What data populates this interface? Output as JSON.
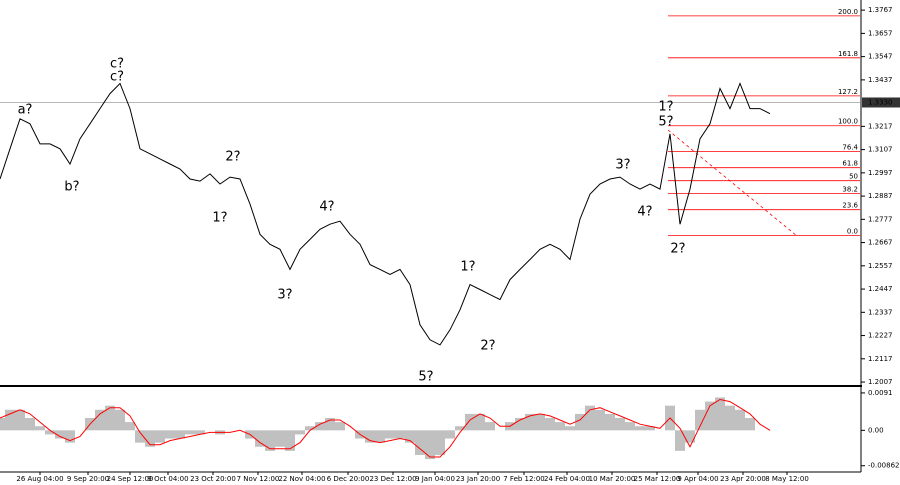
{
  "chart_data": [
    {
      "type": "line",
      "series": [
        {
          "color": "#000000",
          "values": [
            1.2968,
            1.3111,
            1.3253,
            1.3229,
            1.3134,
            1.3134,
            1.3111,
            1.3039,
            1.3158,
            1.3229,
            1.3301,
            1.3372,
            1.342,
            1.3301,
            1.3111,
            1.3087,
            1.3063,
            1.3039,
            1.3015,
            1.2968,
            1.2958,
            1.2992,
            1.2944,
            1.2977,
            1.2968,
            1.2849,
            1.2706,
            1.2659,
            1.2635,
            1.254,
            1.2635,
            1.2682,
            1.273,
            1.2754,
            1.2768,
            1.2706,
            1.2659,
            1.2563,
            1.254,
            1.2516,
            1.254,
            1.2468,
            1.2278,
            1.2207,
            1.2183,
            1.2254,
            1.2349,
            1.2468,
            1.2445,
            1.2421,
            1.2397,
            1.2492,
            1.254,
            1.2587,
            1.2635,
            1.2659,
            1.2635,
            1.2587,
            1.2778,
            1.2896,
            1.2944,
            1.2968,
            1.2977,
            1.2944,
            1.292,
            1.2944,
            1.292,
            1.3182,
            1.2754,
            1.292,
            1.3158,
            1.3229,
            1.3396,
            1.3301,
            1.342,
            1.3301,
            1.3301,
            1.3277
          ]
        }
      ],
      "ylim": [
        1.1993,
        1.3815
      ],
      "yticks": [
        1.3767,
        1.3657,
        1.3547,
        1.3437,
        1.3217,
        1.3107,
        1.2997,
        1.2887,
        1.2777,
        1.2667,
        1.2557,
        1.2447,
        1.2337,
        1.2227,
        1.2117,
        1.2007
      ],
      "current_price": {
        "value": 1.333,
        "label": "1.3330"
      },
      "fib": {
        "low": 1.27,
        "high": 1.322,
        "color": "#ff0000",
        "levels": [
          {
            "value": 0,
            "label": "0.0"
          },
          23.6,
          38.2,
          50,
          {
            "value": 61.8,
            "label": "61.8"
          },
          76.4,
          {
            "value": 100,
            "label": "100.0"
          },
          127.2,
          161.8,
          {
            "value": 200,
            "label": "200.0"
          }
        ]
      },
      "wave_labels": [
        {
          "text": "a?",
          "color": "#ff0000"
        },
        {
          "text": "b?",
          "color": "#ff0000"
        },
        {
          "text": "c?",
          "color": "#0000ff"
        },
        {
          "text": "c?",
          "color": "#ff0000"
        },
        {
          "text": "2?",
          "color": "#ff0000"
        },
        {
          "text": "1?",
          "color": "#ff0000"
        },
        {
          "text": "3?",
          "color": "#ff0000"
        },
        {
          "text": "4?",
          "color": "#ff0000"
        },
        {
          "text": "5?",
          "color": "#ff0000"
        },
        {
          "text": "1?",
          "color": "#ff0000"
        },
        {
          "text": "2?",
          "color": "#ff0000"
        },
        {
          "text": "3?",
          "color": "#ff0000"
        },
        {
          "text": "4?",
          "color": "#ff0000"
        },
        {
          "text": "1?",
          "color": "#0000ff"
        },
        {
          "text": "5?",
          "color": "#ff0000"
        },
        {
          "text": "2?",
          "color": "#0000ff"
        }
      ],
      "x_labels": [
        "26 Aug 04:00",
        "9 Sep 20:00",
        "24 Sep 12:00",
        "9 Oct 04:00",
        "23 Oct 20:00",
        "7 Nov 12:00",
        "22 Nov 04:00",
        "6 Dec 20:00",
        "23 Dec 12:00",
        "9 Jan 04:00",
        "23 Jan 20:00",
        "7 Feb 12:00",
        "24 Feb 04:00",
        "10 Mar 20:00",
        "25 Mar 12:00",
        "9 Apr 04:00",
        "23 Apr 20:00",
        "8 May 12:00"
      ]
    },
    {
      "type": "bar",
      "series": [
        {
          "type": "bar",
          "color": "#c0c0c0",
          "values": [
            0.003,
            0.005,
            0.005,
            0.003,
            0.001,
            -0.001,
            -0.002,
            -0.003,
            0,
            0.003,
            0.005,
            0.006,
            0.005,
            0.002,
            -0.003,
            -0.004,
            -0.003,
            -0.002,
            -0.002,
            -0.001,
            -0.001,
            0,
            -0.001,
            0,
            0,
            -0.002,
            -0.004,
            -0.005,
            -0.004,
            -0.005,
            -0.001,
            0.001,
            0.002,
            0.003,
            0.002,
            0,
            -0.002,
            -0.003,
            -0.003,
            -0.002,
            -0.002,
            -0.003,
            -0.006,
            -0.007,
            -0.006,
            -0.002,
            0.001,
            0.004,
            0.004,
            0.002,
            0,
            0.002,
            0.003,
            0.004,
            0.004,
            0.003,
            0.002,
            0.001,
            0.004,
            0.006,
            0.005,
            0.004,
            0.003,
            0.002,
            0.001,
            0.001,
            0,
            0.006,
            -0.005,
            -0.003,
            0.005,
            0.007,
            0.008,
            0.006,
            0.005,
            0.003,
            0,
            0
          ]
        },
        {
          "type": "line",
          "color": "#ff0000",
          "values": [
            0.003,
            0.004,
            0.005,
            0.004,
            0.002,
            0,
            -0.0015,
            -0.0025,
            -0.0015,
            0.0015,
            0.004,
            0.0055,
            0.0055,
            0.0035,
            -0.0005,
            -0.0035,
            -0.0035,
            -0.0025,
            -0.002,
            -0.0015,
            -0.001,
            -0.0005,
            -0.0005,
            -0.0005,
            0,
            -0.001,
            -0.003,
            -0.0045,
            -0.0045,
            -0.0045,
            -0.003,
            0,
            0.0015,
            0.0025,
            0.0025,
            0.001,
            -0.001,
            -0.0025,
            -0.003,
            -0.0025,
            -0.002,
            -0.0025,
            -0.0045,
            -0.0065,
            -0.0065,
            -0.004,
            -0.0005,
            0.0025,
            0.004,
            0.003,
            0.001,
            0.001,
            0.0025,
            0.0035,
            0.004,
            0.0035,
            0.0025,
            0.0015,
            0.0025,
            0.005,
            0.0055,
            0.0045,
            0.0035,
            0.0025,
            0.0015,
            0.001,
            0.0005,
            0.003,
            0.0005,
            -0.004,
            0.001,
            0.006,
            0.0075,
            0.007,
            0.0055,
            0.004,
            0.0015,
            0
          ]
        }
      ],
      "ylim": [
        -0.0099,
        0.0103
      ],
      "yticks": [
        0.0091,
        {
          "value": 0,
          "label": "0.00"
        },
        -0.00862
      ]
    }
  ]
}
